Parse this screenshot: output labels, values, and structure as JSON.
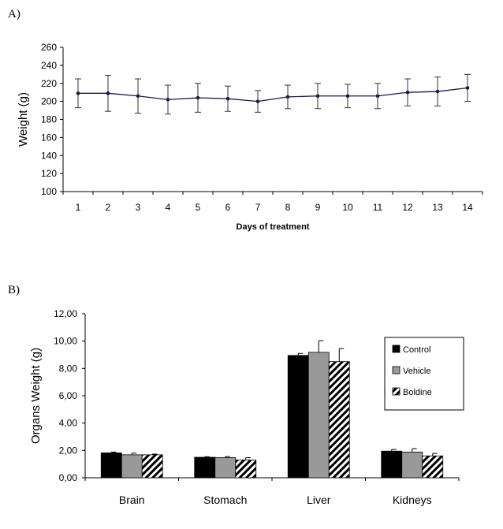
{
  "panel_labels": {
    "a": "A)",
    "b": "B)"
  },
  "chart_data": [
    {
      "type": "line",
      "panel": "A)",
      "title": "",
      "xlabel": "Days of treatment",
      "ylabel": "Weight (g)",
      "x": [
        1,
        2,
        3,
        4,
        5,
        6,
        7,
        8,
        9,
        10,
        11,
        12,
        13,
        14
      ],
      "y": [
        209,
        209,
        206,
        202,
        204,
        203,
        200,
        205,
        206,
        206,
        206,
        210,
        211,
        215
      ],
      "error": [
        16,
        20,
        19,
        16,
        16,
        14,
        12,
        13,
        14,
        13,
        14,
        15,
        16,
        15
      ],
      "ylim": [
        100,
        260
      ],
      "yticks": [
        100,
        120,
        140,
        160,
        180,
        200,
        220,
        240,
        260
      ],
      "grid": false,
      "colors": {
        "line": "#1a1a4e",
        "marker": "#1a1a4e"
      }
    },
    {
      "type": "bar",
      "panel": "B)",
      "title": "",
      "xlabel": "",
      "ylabel": "Organs Weight (g)",
      "categories": [
        "Brain",
        "Stomach",
        "Liver",
        "Kidneys"
      ],
      "series": [
        {
          "name": "Control",
          "values": [
            1.82,
            1.5,
            8.95,
            1.95
          ],
          "error": [
            0.06,
            0.04,
            0.15,
            0.12
          ],
          "style": "solid-black"
        },
        {
          "name": "Vehicle",
          "values": [
            1.68,
            1.48,
            9.18,
            1.88
          ],
          "error": [
            0.12,
            0.07,
            0.85,
            0.25
          ],
          "style": "solid-gray"
        },
        {
          "name": "Boldine",
          "values": [
            1.68,
            1.3,
            8.5,
            1.6
          ],
          "error": [
            0.05,
            0.17,
            0.95,
            0.18
          ],
          "style": "hatched"
        }
      ],
      "ylim": [
        0,
        12
      ],
      "yticks": [
        "0,00",
        "2,00",
        "4,00",
        "6,00",
        "8,00",
        "10,00",
        "12,00"
      ],
      "legend_position": "right",
      "grid": false,
      "colors": {
        "control": "#000000",
        "vehicle": "#999999",
        "boldine_hatch": "#000000"
      }
    }
  ]
}
